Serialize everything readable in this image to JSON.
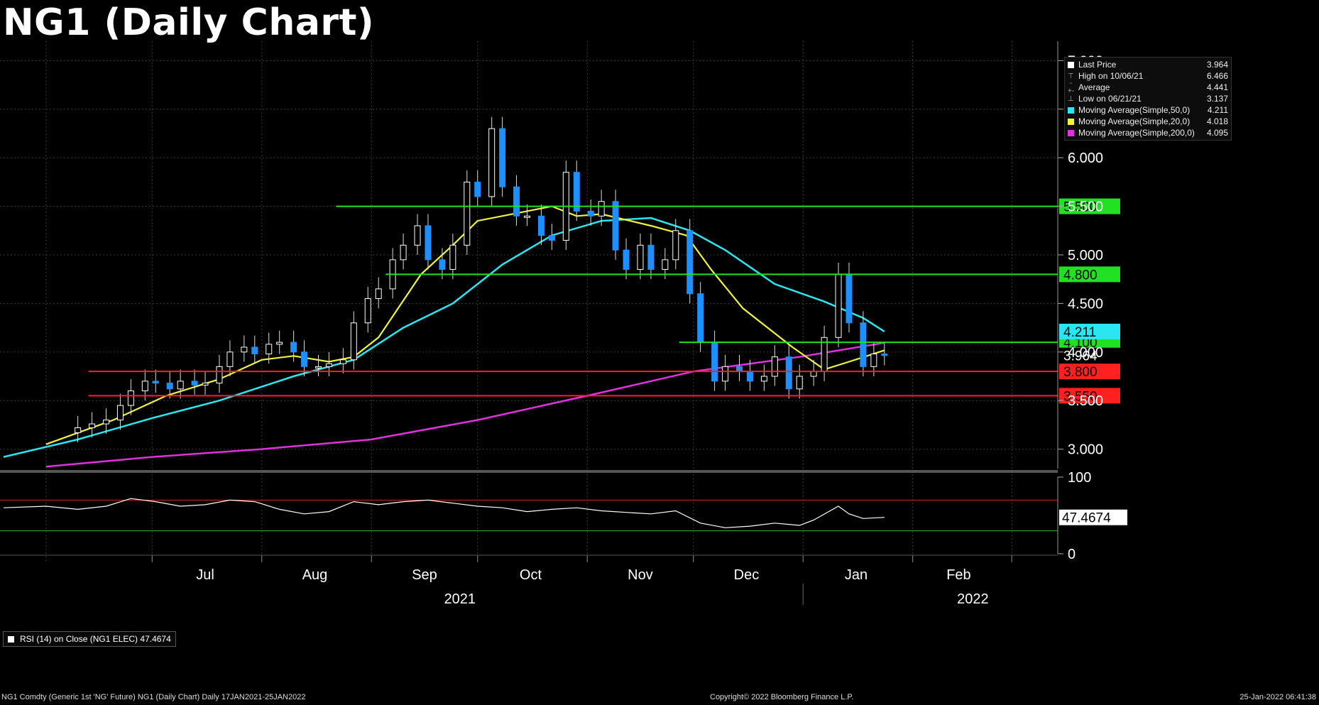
{
  "title": "NG1 (Daily Chart)",
  "legend": [
    {
      "label": "Last Price",
      "value": "3.964",
      "color": "#ffffff",
      "glyph": ""
    },
    {
      "label": "High on 10/06/21",
      "value": "6.466",
      "color": "",
      "glyph": "⊤"
    },
    {
      "label": "Average",
      "value": "4.441",
      "color": "",
      "glyph": "-+-"
    },
    {
      "label": "Low on 06/21/21",
      "value": "3.137",
      "color": "",
      "glyph": "⊥"
    },
    {
      "label": "Moving Average(Simple,50,0)",
      "value": "4.211",
      "color": "#29e6f0",
      "glyph": ""
    },
    {
      "label": "Moving Average(Simple,20,0)",
      "value": "4.018",
      "color": "#f2f23a",
      "glyph": ""
    },
    {
      "label": "Moving Average(Simple,200,0)",
      "value": "4.095",
      "color": "#e030e0",
      "glyph": ""
    }
  ],
  "rsi_label": "RSI (14)   on Close (NG1 ELEC) 47.4674",
  "footer": {
    "left": "NG1 Comdty (Generic 1st 'NG' Future) NG1 (Daily Chart)  Daily 17JAN2021-25JAN2022",
    "center": "Copyright© 2022 Bloomberg Finance L.P.",
    "right": "25-Jan-2022 06:41:38"
  },
  "chart_data": [
    {
      "type": "candlestick",
      "title": "NG1 (Daily Chart)",
      "x_ticks": [
        "Jul",
        "Aug",
        "Sep",
        "Oct",
        "Nov",
        "Dec",
        "Jan",
        "Feb"
      ],
      "year_labels": [
        "2021",
        "2022"
      ],
      "y_ticks": [
        "3.000",
        "3.500",
        "4.000",
        "4.500",
        "5.000",
        "5.500",
        "6.000",
        "6.500",
        "7.000"
      ],
      "ylim": [
        2.8,
        7.2
      ],
      "price_points": [
        [
          "2021-06-10",
          3.22
        ],
        [
          "2021-06-14",
          3.26
        ],
        [
          "2021-06-18",
          3.3
        ],
        [
          "2021-06-22",
          3.45
        ],
        [
          "2021-06-25",
          3.6
        ],
        [
          "2021-06-29",
          3.7
        ],
        [
          "2021-07-02",
          3.68
        ],
        [
          "2021-07-06",
          3.62
        ],
        [
          "2021-07-09",
          3.7
        ],
        [
          "2021-07-13",
          3.66
        ],
        [
          "2021-07-16",
          3.68
        ],
        [
          "2021-07-20",
          3.85
        ],
        [
          "2021-07-23",
          4.0
        ],
        [
          "2021-07-27",
          4.05
        ],
        [
          "2021-07-30",
          3.98
        ],
        [
          "2021-08-03",
          4.08
        ],
        [
          "2021-08-06",
          4.1
        ],
        [
          "2021-08-10",
          4.0
        ],
        [
          "2021-08-13",
          3.85
        ],
        [
          "2021-08-17",
          3.85
        ],
        [
          "2021-08-20",
          3.88
        ],
        [
          "2021-08-24",
          3.92
        ],
        [
          "2021-08-27",
          4.3
        ],
        [
          "2021-08-31",
          4.55
        ],
        [
          "2021-09-03",
          4.65
        ],
        [
          "2021-09-07",
          4.95
        ],
        [
          "2021-09-10",
          5.1
        ],
        [
          "2021-09-14",
          5.3
        ],
        [
          "2021-09-17",
          4.95
        ],
        [
          "2021-09-21",
          4.85
        ],
        [
          "2021-09-24",
          5.1
        ],
        [
          "2021-09-28",
          5.75
        ],
        [
          "2021-10-01",
          5.6
        ],
        [
          "2021-10-05",
          6.3
        ],
        [
          "2021-10-08",
          5.7
        ],
        [
          "2021-10-12",
          5.4
        ],
        [
          "2021-10-15",
          5.4
        ],
        [
          "2021-10-19",
          5.2
        ],
        [
          "2021-10-22",
          5.15
        ],
        [
          "2021-10-26",
          5.85
        ],
        [
          "2021-10-29",
          5.45
        ],
        [
          "2021-11-02",
          5.4
        ],
        [
          "2021-11-05",
          5.55
        ],
        [
          "2021-11-09",
          5.05
        ],
        [
          "2021-11-12",
          4.85
        ],
        [
          "2021-11-16",
          5.1
        ],
        [
          "2021-11-19",
          4.85
        ],
        [
          "2021-11-23",
          4.95
        ],
        [
          "2021-11-26",
          5.25
        ],
        [
          "2021-11-30",
          4.6
        ],
        [
          "2021-12-03",
          4.1
        ],
        [
          "2021-12-07",
          3.7
        ],
        [
          "2021-12-10",
          3.85
        ],
        [
          "2021-12-14",
          3.8
        ],
        [
          "2021-12-17",
          3.7
        ],
        [
          "2021-12-21",
          3.75
        ],
        [
          "2021-12-24",
          3.95
        ],
        [
          "2021-12-28",
          3.62
        ],
        [
          "2021-12-31",
          3.75
        ],
        [
          "2022-01-04",
          3.8
        ],
        [
          "2022-01-07",
          4.15
        ],
        [
          "2022-01-11",
          4.8
        ],
        [
          "2022-01-14",
          4.3
        ],
        [
          "2022-01-18",
          3.85
        ],
        [
          "2022-01-21",
          3.98
        ],
        [
          "2022-01-24",
          3.964
        ]
      ],
      "sma_20": [
        [
          "2021-06-01",
          3.05
        ],
        [
          "2021-06-20",
          3.3
        ],
        [
          "2021-07-05",
          3.55
        ],
        [
          "2021-07-20",
          3.72
        ],
        [
          "2021-08-01",
          3.92
        ],
        [
          "2021-08-10",
          3.96
        ],
        [
          "2021-08-20",
          3.9
        ],
        [
          "2021-08-27",
          3.95
        ],
        [
          "2021-09-03",
          4.15
        ],
        [
          "2021-09-15",
          4.8
        ],
        [
          "2021-09-24",
          5.1
        ],
        [
          "2021-10-01",
          5.35
        ],
        [
          "2021-10-15",
          5.45
        ],
        [
          "2021-10-22",
          5.5
        ],
        [
          "2021-10-29",
          5.4
        ],
        [
          "2021-11-05",
          5.42
        ],
        [
          "2021-11-19",
          5.3
        ],
        [
          "2021-11-29",
          5.2
        ],
        [
          "2021-12-06",
          4.85
        ],
        [
          "2021-12-15",
          4.45
        ],
        [
          "2021-12-29",
          4.05
        ],
        [
          "2022-01-07",
          3.82
        ],
        [
          "2022-01-14",
          3.9
        ],
        [
          "2022-01-24",
          4.018
        ]
      ],
      "sma_50": [
        [
          "2021-05-20",
          2.92
        ],
        [
          "2021-06-10",
          3.1
        ],
        [
          "2021-07-01",
          3.32
        ],
        [
          "2021-07-20",
          3.5
        ],
        [
          "2021-08-10",
          3.75
        ],
        [
          "2021-08-27",
          3.92
        ],
        [
          "2021-09-10",
          4.25
        ],
        [
          "2021-09-24",
          4.5
        ],
        [
          "2021-10-08",
          4.9
        ],
        [
          "2021-10-22",
          5.2
        ],
        [
          "2021-11-05",
          5.35
        ],
        [
          "2021-11-19",
          5.38
        ],
        [
          "2021-11-30",
          5.25
        ],
        [
          "2021-12-10",
          5.05
        ],
        [
          "2021-12-24",
          4.7
        ],
        [
          "2022-01-07",
          4.52
        ],
        [
          "2022-01-18",
          4.35
        ],
        [
          "2022-01-24",
          4.211
        ]
      ],
      "sma_200": [
        [
          "2021-06-01",
          2.82
        ],
        [
          "2021-07-01",
          2.92
        ],
        [
          "2021-08-01",
          3.0
        ],
        [
          "2021-09-01",
          3.1
        ],
        [
          "2021-10-01",
          3.3
        ],
        [
          "2021-11-01",
          3.55
        ],
        [
          "2021-12-01",
          3.8
        ],
        [
          "2021-12-31",
          3.95
        ],
        [
          "2022-01-24",
          4.095
        ]
      ],
      "levels": [
        {
          "value": 5.5,
          "label": "5.500",
          "color": "#22e022"
        },
        {
          "value": 4.8,
          "label": "4.800",
          "color": "#22e022"
        },
        {
          "value": 4.1,
          "label": "4.100",
          "color": "#22e022"
        },
        {
          "value": 3.8,
          "label": "3.800",
          "color": "#ff2020"
        },
        {
          "value": 3.55,
          "label": "3.550",
          "color": "#ff2020"
        }
      ],
      "last_price_label": "3.964",
      "sma50_label": "4.211"
    },
    {
      "type": "line",
      "title": "RSI (14)",
      "ylim": [
        0,
        100
      ],
      "y_ticks": [
        "0",
        "100"
      ],
      "overbought": 70,
      "oversold": 30,
      "last_value_label": "47.4674",
      "rsi_points": [
        [
          "2021-05-20",
          60
        ],
        [
          "2021-06-01",
          62
        ],
        [
          "2021-06-10",
          58
        ],
        [
          "2021-06-18",
          62
        ],
        [
          "2021-06-25",
          72
        ],
        [
          "2021-07-02",
          68
        ],
        [
          "2021-07-09",
          62
        ],
        [
          "2021-07-16",
          64
        ],
        [
          "2021-07-23",
          70
        ],
        [
          "2021-07-30",
          68
        ],
        [
          "2021-08-06",
          58
        ],
        [
          "2021-08-13",
          52
        ],
        [
          "2021-08-20",
          55
        ],
        [
          "2021-08-27",
          68
        ],
        [
          "2021-09-03",
          64
        ],
        [
          "2021-09-10",
          68
        ],
        [
          "2021-09-17",
          70
        ],
        [
          "2021-09-24",
          66
        ],
        [
          "2021-10-01",
          62
        ],
        [
          "2021-10-08",
          60
        ],
        [
          "2021-10-15",
          55
        ],
        [
          "2021-10-22",
          58
        ],
        [
          "2021-10-29",
          60
        ],
        [
          "2021-11-05",
          56
        ],
        [
          "2021-11-12",
          54
        ],
        [
          "2021-11-19",
          52
        ],
        [
          "2021-11-26",
          56
        ],
        [
          "2021-12-03",
          40
        ],
        [
          "2021-12-10",
          34
        ],
        [
          "2021-12-17",
          36
        ],
        [
          "2021-12-24",
          40
        ],
        [
          "2021-12-31",
          37
        ],
        [
          "2022-01-04",
          44
        ],
        [
          "2022-01-11",
          62
        ],
        [
          "2022-01-14",
          52
        ],
        [
          "2022-01-18",
          46
        ],
        [
          "2022-01-24",
          47.4674
        ]
      ]
    }
  ]
}
